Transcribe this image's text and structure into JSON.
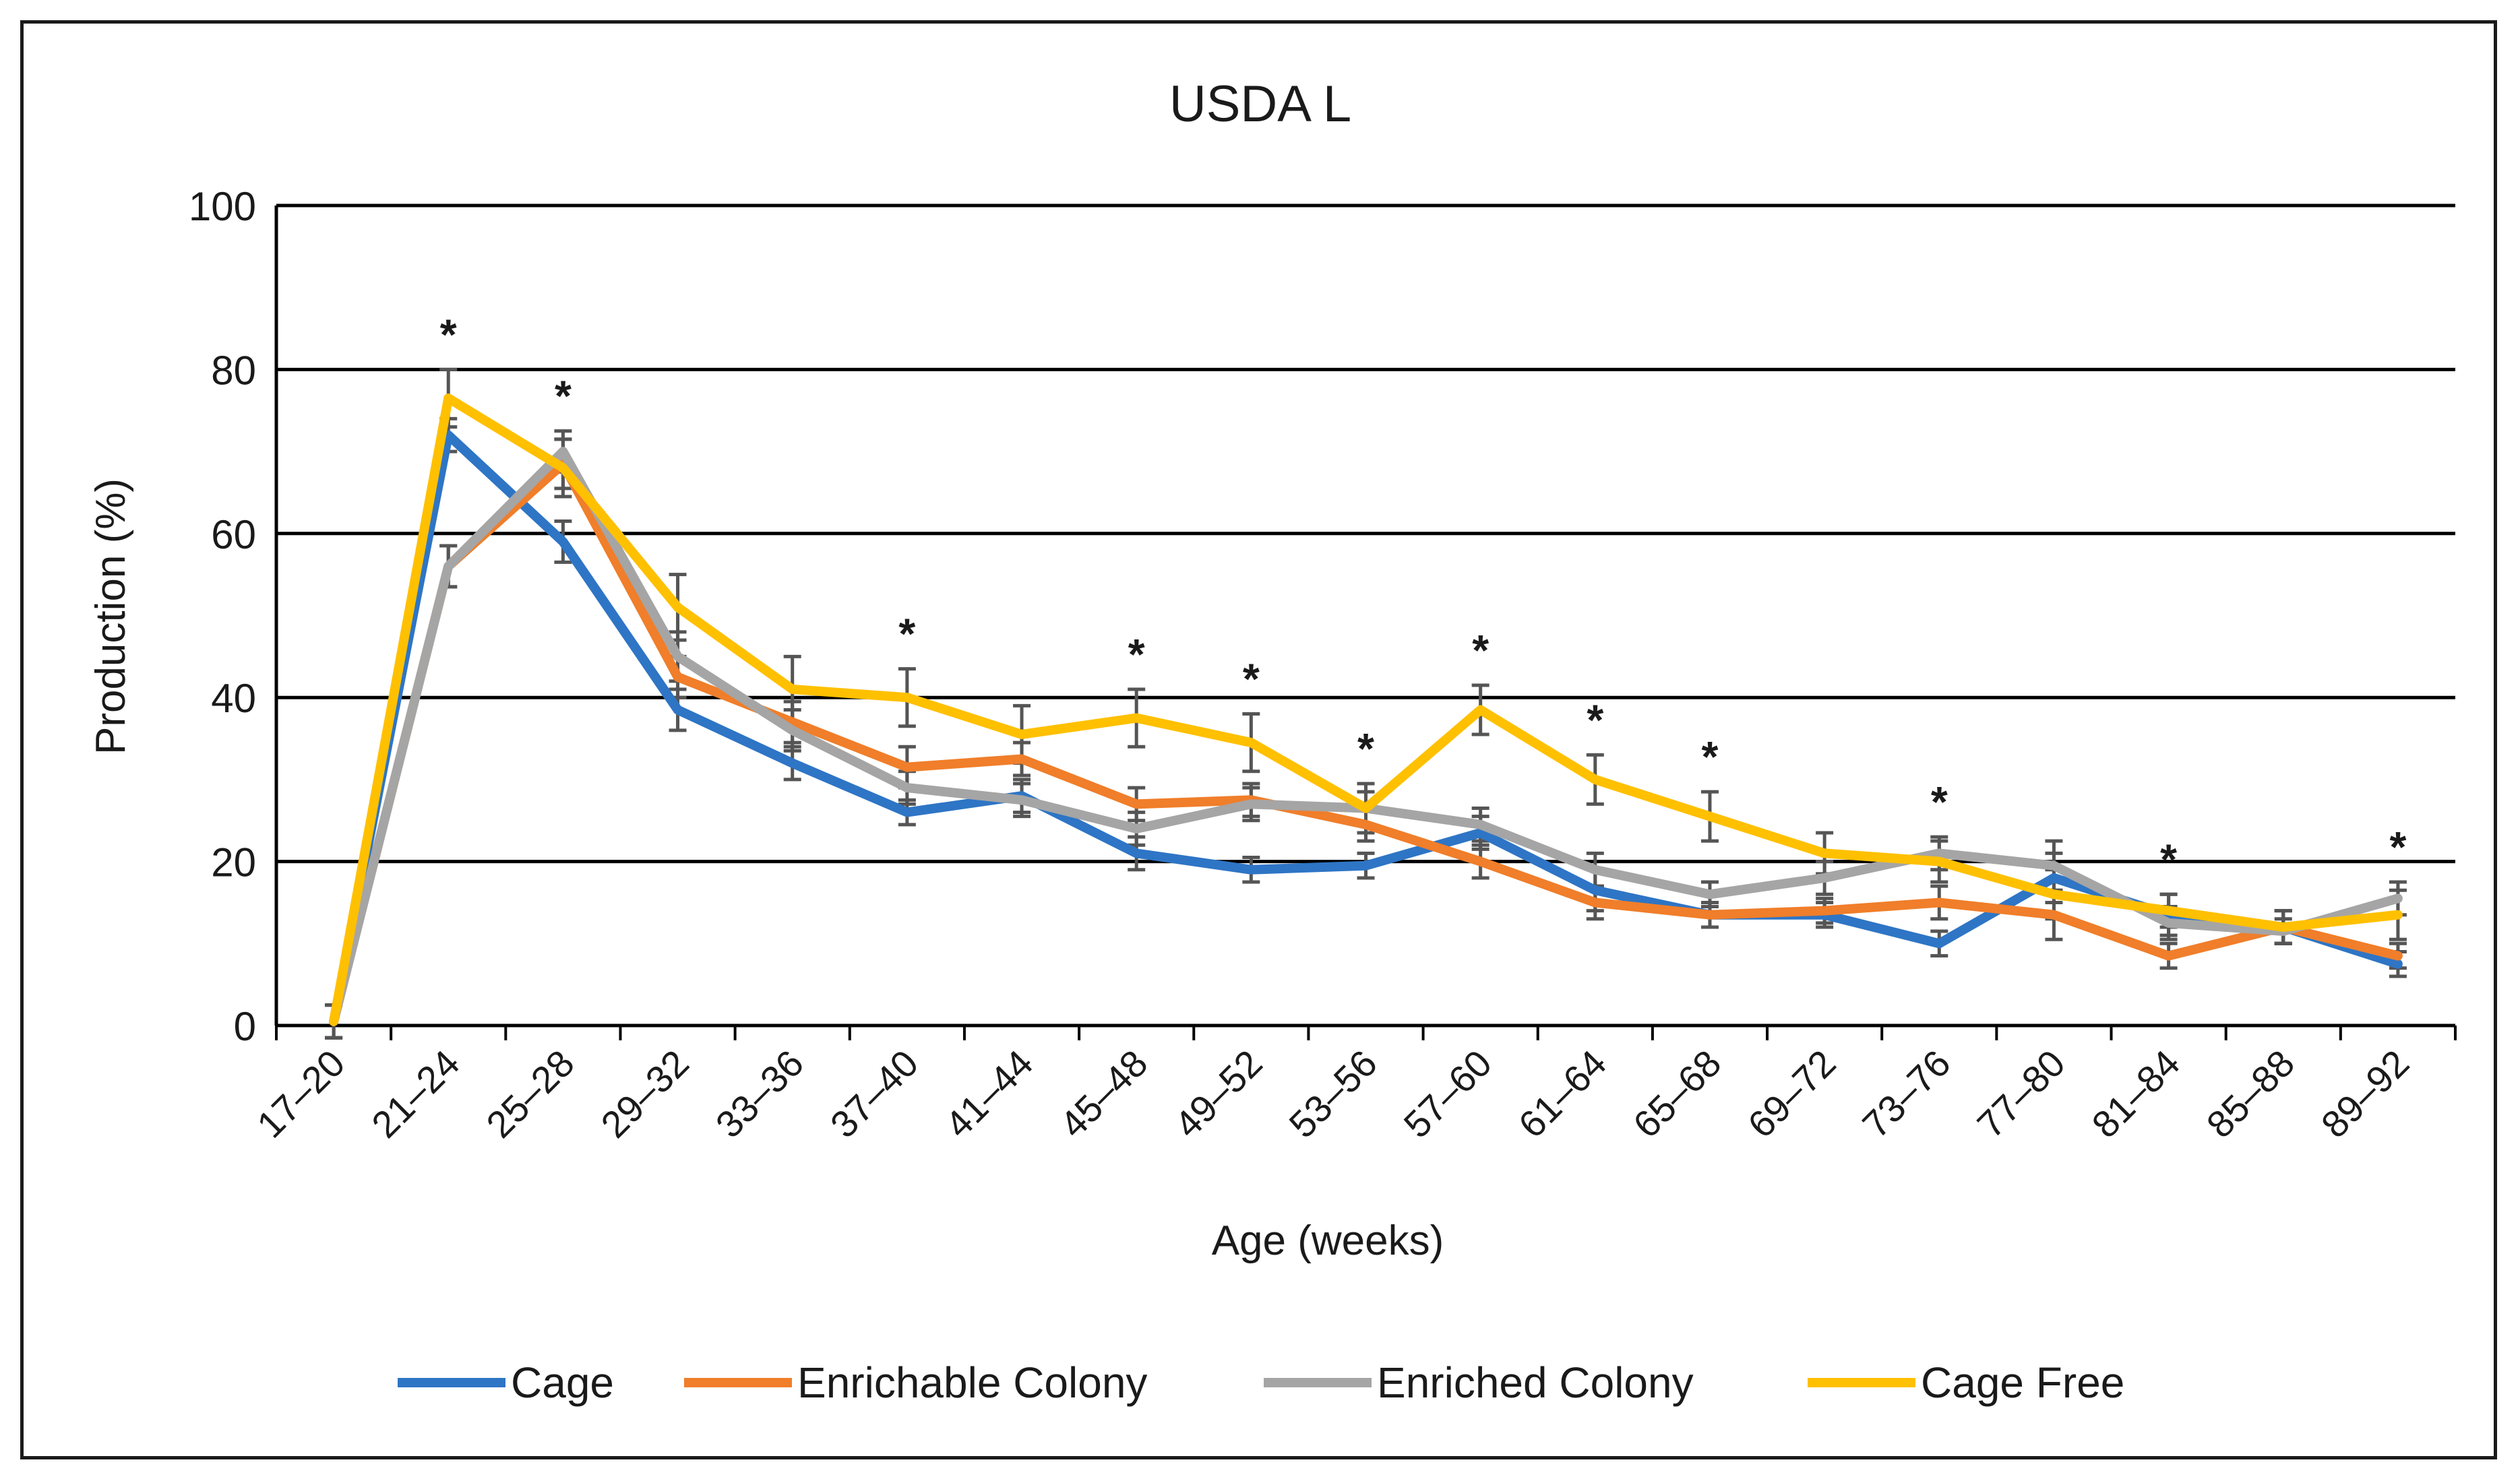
{
  "chart_data": {
    "type": "line",
    "title": "USDA L",
    "xlabel": "Age (weeks)",
    "ylabel": "Production (%)",
    "ylim": [
      0,
      100
    ],
    "yticks": [
      0,
      20,
      40,
      60,
      80,
      100
    ],
    "grid": "horizontal",
    "legend_position": "bottom",
    "categories": [
      "17–20",
      "21–24",
      "25–28",
      "29–32",
      "33–36",
      "37–40",
      "41–44",
      "45–48",
      "49–52",
      "53–56",
      "57–60",
      "61–64",
      "65–68",
      "69–72",
      "73–76",
      "77–80",
      "81–84",
      "85–88",
      "89–92"
    ],
    "significance_marker": "*",
    "significant_categories": [
      "21–24",
      "25–28",
      "37–40",
      "45–48",
      "49–52",
      "53–56",
      "57–60",
      "61–64",
      "65–68",
      "73–76",
      "81–84",
      "89–92"
    ],
    "series": [
      {
        "name": "Cage",
        "color": "#2E75C5",
        "values": [
          0.5,
          72,
          59,
          38.5,
          32,
          26,
          28,
          21,
          19,
          19.5,
          23.5,
          16.5,
          13.5,
          13.5,
          10,
          18,
          13.5,
          12,
          7.5
        ],
        "errors": [
          2,
          2,
          2.5,
          2.5,
          2,
          1.5,
          2,
          2,
          1.5,
          1.5,
          2,
          2.5,
          1.5,
          1.5,
          1.5,
          3,
          2.5,
          2,
          1.5
        ]
      },
      {
        "name": "Enrichable Colony",
        "color": "#F07E2A",
        "values": [
          0.5,
          56,
          68.5,
          42.5,
          37,
          31.5,
          32.5,
          27,
          27.5,
          24.5,
          20,
          15,
          13.5,
          14,
          15,
          13.5,
          8.5,
          12,
          8.5
        ],
        "errors": [
          2,
          2.5,
          3,
          2.5,
          2.5,
          2.5,
          2,
          2,
          2,
          2,
          2,
          2,
          1.5,
          1.5,
          2,
          3,
          1.5,
          2,
          1.5
        ]
      },
      {
        "name": "Enriched Colony",
        "color": "#A5A5A5",
        "values": [
          0.5,
          56,
          70,
          45,
          36,
          29,
          27.5,
          24,
          27,
          26.5,
          24.5,
          19,
          16,
          18,
          21,
          19.5,
          12.5,
          11.5,
          15.5
        ],
        "errors": [
          2,
          2.5,
          2.5,
          3,
          2.5,
          2,
          2,
          2,
          2,
          2,
          2,
          2,
          1.5,
          2,
          2,
          3,
          2,
          1.5,
          2
        ]
      },
      {
        "name": "Cage Free",
        "color": "#FFC000",
        "values": [
          0.5,
          76.5,
          68,
          51,
          41,
          40,
          35.5,
          37.5,
          34.5,
          26.5,
          38.5,
          30,
          25.5,
          21,
          20,
          16,
          14,
          12,
          13.5
        ],
        "errors": [
          2,
          3.5,
          3.5,
          4,
          4,
          3.5,
          3.5,
          3.5,
          3.5,
          3,
          3,
          3,
          3,
          2.5,
          2.5,
          3,
          2,
          2,
          3
        ]
      }
    ]
  }
}
